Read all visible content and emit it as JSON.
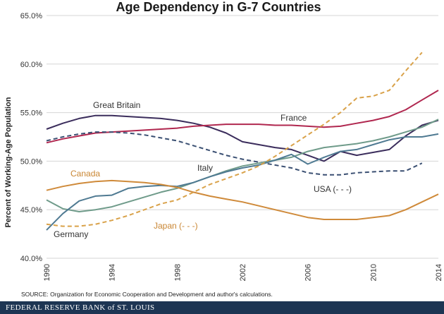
{
  "chart_data": {
    "type": "line",
    "title": "Age Dependency in G-7 Countries",
    "ylabel": "Percent of Working-Age Population",
    "xlabel": "",
    "xlim": [
      1990,
      2014
    ],
    "ylim": [
      40,
      65
    ],
    "x_ticks": [
      "1990",
      "1994",
      "1998",
      "2002",
      "2006",
      "2010",
      "2014"
    ],
    "y_ticks": [
      "40.0%",
      "45.0%",
      "50.0%",
      "55.0%",
      "60.0%",
      "65.0%"
    ],
    "grid": "horizontal",
    "series": [
      {
        "name": "Great Britain",
        "color": "#3b2d5c",
        "dash": false,
        "points": [
          [
            1990,
            53.3
          ],
          [
            1991,
            53.9
          ],
          [
            1992,
            54.4
          ],
          [
            1993,
            54.7
          ],
          [
            1994,
            54.7
          ],
          [
            1995,
            54.6
          ],
          [
            1996,
            54.5
          ],
          [
            1997,
            54.4
          ],
          [
            1998,
            54.2
          ],
          [
            1999,
            53.9
          ],
          [
            2000,
            53.5
          ],
          [
            2001,
            52.9
          ],
          [
            2002,
            52.0
          ],
          [
            2003,
            51.7
          ],
          [
            2004,
            51.4
          ],
          [
            2005,
            51.2
          ],
          [
            2006,
            50.6
          ],
          [
            2007,
            50.0
          ],
          [
            2008,
            51.0
          ],
          [
            2009,
            50.6
          ],
          [
            2010,
            50.9
          ],
          [
            2011,
            51.2
          ],
          [
            2012,
            52.6
          ],
          [
            2013,
            53.7
          ],
          [
            2014,
            54.2
          ]
        ]
      },
      {
        "name": "France",
        "color": "#b0274f",
        "dash": false,
        "points": [
          [
            1990,
            51.9
          ],
          [
            1991,
            52.3
          ],
          [
            1992,
            52.6
          ],
          [
            1993,
            52.9
          ],
          [
            1994,
            53.0
          ],
          [
            1995,
            53.1
          ],
          [
            1996,
            53.2
          ],
          [
            1997,
            53.3
          ],
          [
            1998,
            53.4
          ],
          [
            1999,
            53.6
          ],
          [
            2000,
            53.7
          ],
          [
            2001,
            53.8
          ],
          [
            2002,
            53.8
          ],
          [
            2003,
            53.8
          ],
          [
            2004,
            53.7
          ],
          [
            2005,
            53.7
          ],
          [
            2006,
            53.6
          ],
          [
            2007,
            53.5
          ],
          [
            2008,
            53.6
          ],
          [
            2009,
            53.9
          ],
          [
            2010,
            54.2
          ],
          [
            2011,
            54.6
          ],
          [
            2012,
            55.3
          ],
          [
            2013,
            56.3
          ],
          [
            2014,
            57.3
          ]
        ]
      },
      {
        "name": "USA (- - -)",
        "color": "#3a4f72",
        "dash": true,
        "points": [
          [
            1990,
            52.1
          ],
          [
            1991,
            52.5
          ],
          [
            1992,
            52.8
          ],
          [
            1993,
            53.0
          ],
          [
            1994,
            53.0
          ],
          [
            1995,
            52.9
          ],
          [
            1996,
            52.7
          ],
          [
            1997,
            52.4
          ],
          [
            1998,
            52.1
          ],
          [
            1999,
            51.6
          ],
          [
            2000,
            51.1
          ],
          [
            2001,
            50.6
          ],
          [
            2002,
            50.2
          ],
          [
            2003,
            49.9
          ],
          [
            2004,
            49.6
          ],
          [
            2005,
            49.3
          ],
          [
            2006,
            48.8
          ],
          [
            2007,
            48.6
          ],
          [
            2008,
            48.6
          ],
          [
            2009,
            48.8
          ],
          [
            2010,
            48.9
          ],
          [
            2011,
            49.0
          ],
          [
            2012,
            49.0
          ],
          [
            2013,
            49.8
          ]
        ]
      },
      {
        "name": "Italy",
        "color": "#6f9b8a",
        "dash": false,
        "points": [
          [
            1990,
            46.0
          ],
          [
            1991,
            45.1
          ],
          [
            1992,
            44.8
          ],
          [
            1993,
            45.0
          ],
          [
            1994,
            45.3
          ],
          [
            1995,
            45.8
          ],
          [
            1996,
            46.3
          ],
          [
            1997,
            46.8
          ],
          [
            1998,
            47.2
          ],
          [
            1999,
            47.8
          ],
          [
            2000,
            48.4
          ],
          [
            2001,
            49.0
          ],
          [
            2002,
            49.5
          ],
          [
            2003,
            49.8
          ],
          [
            2004,
            50.1
          ],
          [
            2005,
            50.4
          ],
          [
            2006,
            51.0
          ],
          [
            2007,
            51.4
          ],
          [
            2008,
            51.6
          ],
          [
            2009,
            51.8
          ],
          [
            2010,
            52.1
          ],
          [
            2011,
            52.5
          ],
          [
            2012,
            53.0
          ],
          [
            2013,
            53.5
          ],
          [
            2014,
            54.3
          ]
        ]
      },
      {
        "name": "Germany",
        "color": "#4f7a92",
        "dash": false,
        "points": [
          [
            1990,
            42.9
          ],
          [
            1991,
            44.6
          ],
          [
            1992,
            45.9
          ],
          [
            1993,
            46.4
          ],
          [
            1994,
            46.5
          ],
          [
            1995,
            47.2
          ],
          [
            1996,
            47.4
          ],
          [
            1997,
            47.5
          ],
          [
            1998,
            47.4
          ],
          [
            1999,
            47.8
          ],
          [
            2000,
            48.4
          ],
          [
            2001,
            48.9
          ],
          [
            2002,
            49.3
          ],
          [
            2003,
            49.6
          ],
          [
            2004,
            50.1
          ],
          [
            2005,
            50.7
          ],
          [
            2006,
            49.7
          ],
          [
            2007,
            50.4
          ],
          [
            2008,
            51.0
          ],
          [
            2009,
            51.2
          ],
          [
            2010,
            51.7
          ],
          [
            2011,
            52.2
          ],
          [
            2012,
            52.5
          ],
          [
            2013,
            52.5
          ],
          [
            2014,
            52.8
          ]
        ]
      },
      {
        "name": "Canada",
        "color": "#cf8a3a",
        "dash": false,
        "points": [
          [
            1990,
            47.0
          ],
          [
            1991,
            47.4
          ],
          [
            1992,
            47.7
          ],
          [
            1993,
            47.9
          ],
          [
            1994,
            48.0
          ],
          [
            1995,
            47.9
          ],
          [
            1996,
            47.8
          ],
          [
            1997,
            47.6
          ],
          [
            1998,
            47.3
          ],
          [
            1999,
            46.8
          ],
          [
            2000,
            46.4
          ],
          [
            2001,
            46.1
          ],
          [
            2002,
            45.8
          ],
          [
            2003,
            45.4
          ],
          [
            2004,
            45.0
          ],
          [
            2005,
            44.6
          ],
          [
            2006,
            44.2
          ],
          [
            2007,
            44.0
          ],
          [
            2008,
            44.0
          ],
          [
            2009,
            44.0
          ],
          [
            2010,
            44.2
          ],
          [
            2011,
            44.4
          ],
          [
            2012,
            45.0
          ],
          [
            2013,
            45.8
          ],
          [
            2014,
            46.6
          ]
        ]
      },
      {
        "name": "Japan (- - -)",
        "color": "#d9a24a",
        "dash": true,
        "points": [
          [
            1990,
            43.5
          ],
          [
            1991,
            43.3
          ],
          [
            1992,
            43.3
          ],
          [
            1993,
            43.5
          ],
          [
            1994,
            43.9
          ],
          [
            1995,
            44.4
          ],
          [
            1996,
            45.0
          ],
          [
            1997,
            45.6
          ],
          [
            1998,
            46.0
          ],
          [
            1999,
            46.8
          ],
          [
            2000,
            47.6
          ],
          [
            2001,
            48.2
          ],
          [
            2002,
            48.8
          ],
          [
            2003,
            49.5
          ],
          [
            2004,
            50.5
          ],
          [
            2005,
            51.6
          ],
          [
            2006,
            52.7
          ],
          [
            2007,
            53.8
          ],
          [
            2008,
            55.0
          ],
          [
            2009,
            56.5
          ],
          [
            2010,
            56.7
          ],
          [
            2011,
            57.3
          ],
          [
            2012,
            59.3
          ],
          [
            2013,
            61.2
          ]
        ]
      }
    ],
    "source": "SOURCE: Organization for Economic Cooperation and Development and author's calculations."
  },
  "footer": {
    "publisher": "FEDERAL RESERVE BANK of ST. LOUIS"
  }
}
